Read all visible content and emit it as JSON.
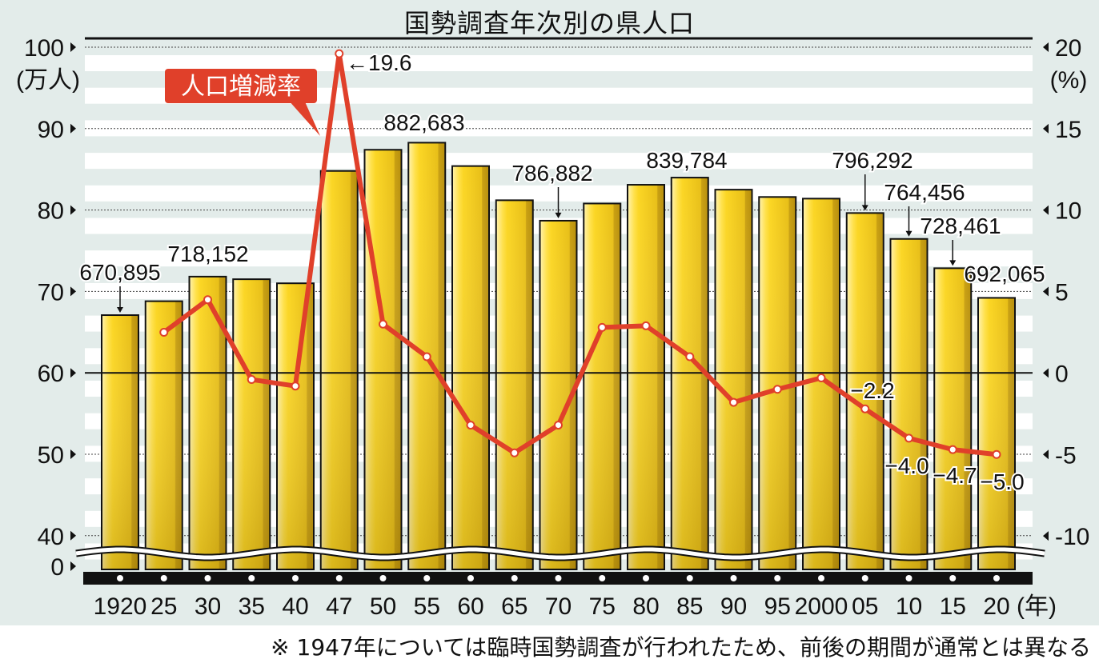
{
  "title": "国勢調査年次別の県人口",
  "footnote": "※ 1947年については臨時国勢調査が行われたため、前後の期間が通常とは異なる",
  "callout_label": "人口増減率",
  "left_axis": {
    "unit": "(万人)",
    "ticks": [
      "100",
      "90",
      "80",
      "70",
      "60",
      "50",
      "40",
      "0"
    ]
  },
  "right_axis": {
    "unit": "(%)",
    "ticks": [
      "20",
      "15",
      "10",
      "5",
      "0",
      "-5",
      "-10"
    ]
  },
  "x_unit": "(年)",
  "colors": {
    "bar": "#f2c81c",
    "bar_dark": "#c9a012",
    "line": "#e0402a",
    "background": "#e3ecea"
  },
  "chart_data": {
    "type": "bar+line",
    "title": "国勢調査年次別の県人口",
    "categories": [
      "1920",
      "25",
      "30",
      "35",
      "40",
      "47",
      "50",
      "55",
      "60",
      "65",
      "70",
      "75",
      "80",
      "85",
      "90",
      "95",
      "2000",
      "05",
      "10",
      "15",
      "20"
    ],
    "years": [
      1920,
      1925,
      1930,
      1935,
      1940,
      1947,
      1950,
      1955,
      1960,
      1965,
      1970,
      1975,
      1980,
      1985,
      1990,
      1995,
      2000,
      2005,
      2010,
      2015,
      2020
    ],
    "series": [
      {
        "name": "県人口",
        "axis": "left",
        "unit": "万人",
        "type": "bar",
        "values": [
          67.09,
          68.8,
          71.82,
          71.5,
          71.0,
          84.8,
          87.4,
          88.27,
          85.4,
          81.2,
          78.69,
          80.8,
          83.1,
          83.98,
          82.5,
          81.6,
          81.4,
          79.63,
          76.45,
          72.85,
          69.21
        ]
      },
      {
        "name": "人口増減率",
        "axis": "right",
        "unit": "%",
        "type": "line",
        "values": [
          null,
          2.5,
          4.5,
          -0.4,
          -0.8,
          19.6,
          3.0,
          1.0,
          -3.2,
          -4.9,
          -3.2,
          2.8,
          2.9,
          1.0,
          -1.8,
          -1.0,
          -0.3,
          -2.2,
          -4.0,
          -4.7,
          -5.0
        ]
      }
    ],
    "bar_labels": [
      {
        "year": 1920,
        "text": "670,895",
        "arrow": true
      },
      {
        "year": 1930,
        "text": "718,152",
        "arrow": false
      },
      {
        "year": 1955,
        "text": "882,683",
        "arrow": false
      },
      {
        "year": 1970,
        "text": "786,882",
        "arrow": true
      },
      {
        "year": 1985,
        "text": "839,784",
        "arrow": false
      },
      {
        "year": 2005,
        "text": "796,292",
        "arrow": true
      },
      {
        "year": 2010,
        "text": "764,456",
        "arrow": true
      },
      {
        "year": 2015,
        "text": "728,461",
        "arrow": true
      },
      {
        "year": 2020,
        "text": "692,065",
        "arrow": false
      }
    ],
    "line_labels": [
      {
        "year": 1947,
        "text": "←19.6"
      },
      {
        "year": 2005,
        "text": "−2.2"
      },
      {
        "year": 2010,
        "text": "−4.0"
      },
      {
        "year": 2015,
        "text": "−4.7"
      },
      {
        "year": 2020,
        "text": "−5.0"
      }
    ],
    "xlabel": "(年)",
    "ylabel": "(万人)",
    "y2label": "(%)",
    "ylim": [
      40,
      100
    ],
    "y2lim": [
      -10,
      20
    ],
    "axis_break": "0 to 40 (wavy break)",
    "grid": "dotted horizontal lines every 10万人 / 5%"
  }
}
